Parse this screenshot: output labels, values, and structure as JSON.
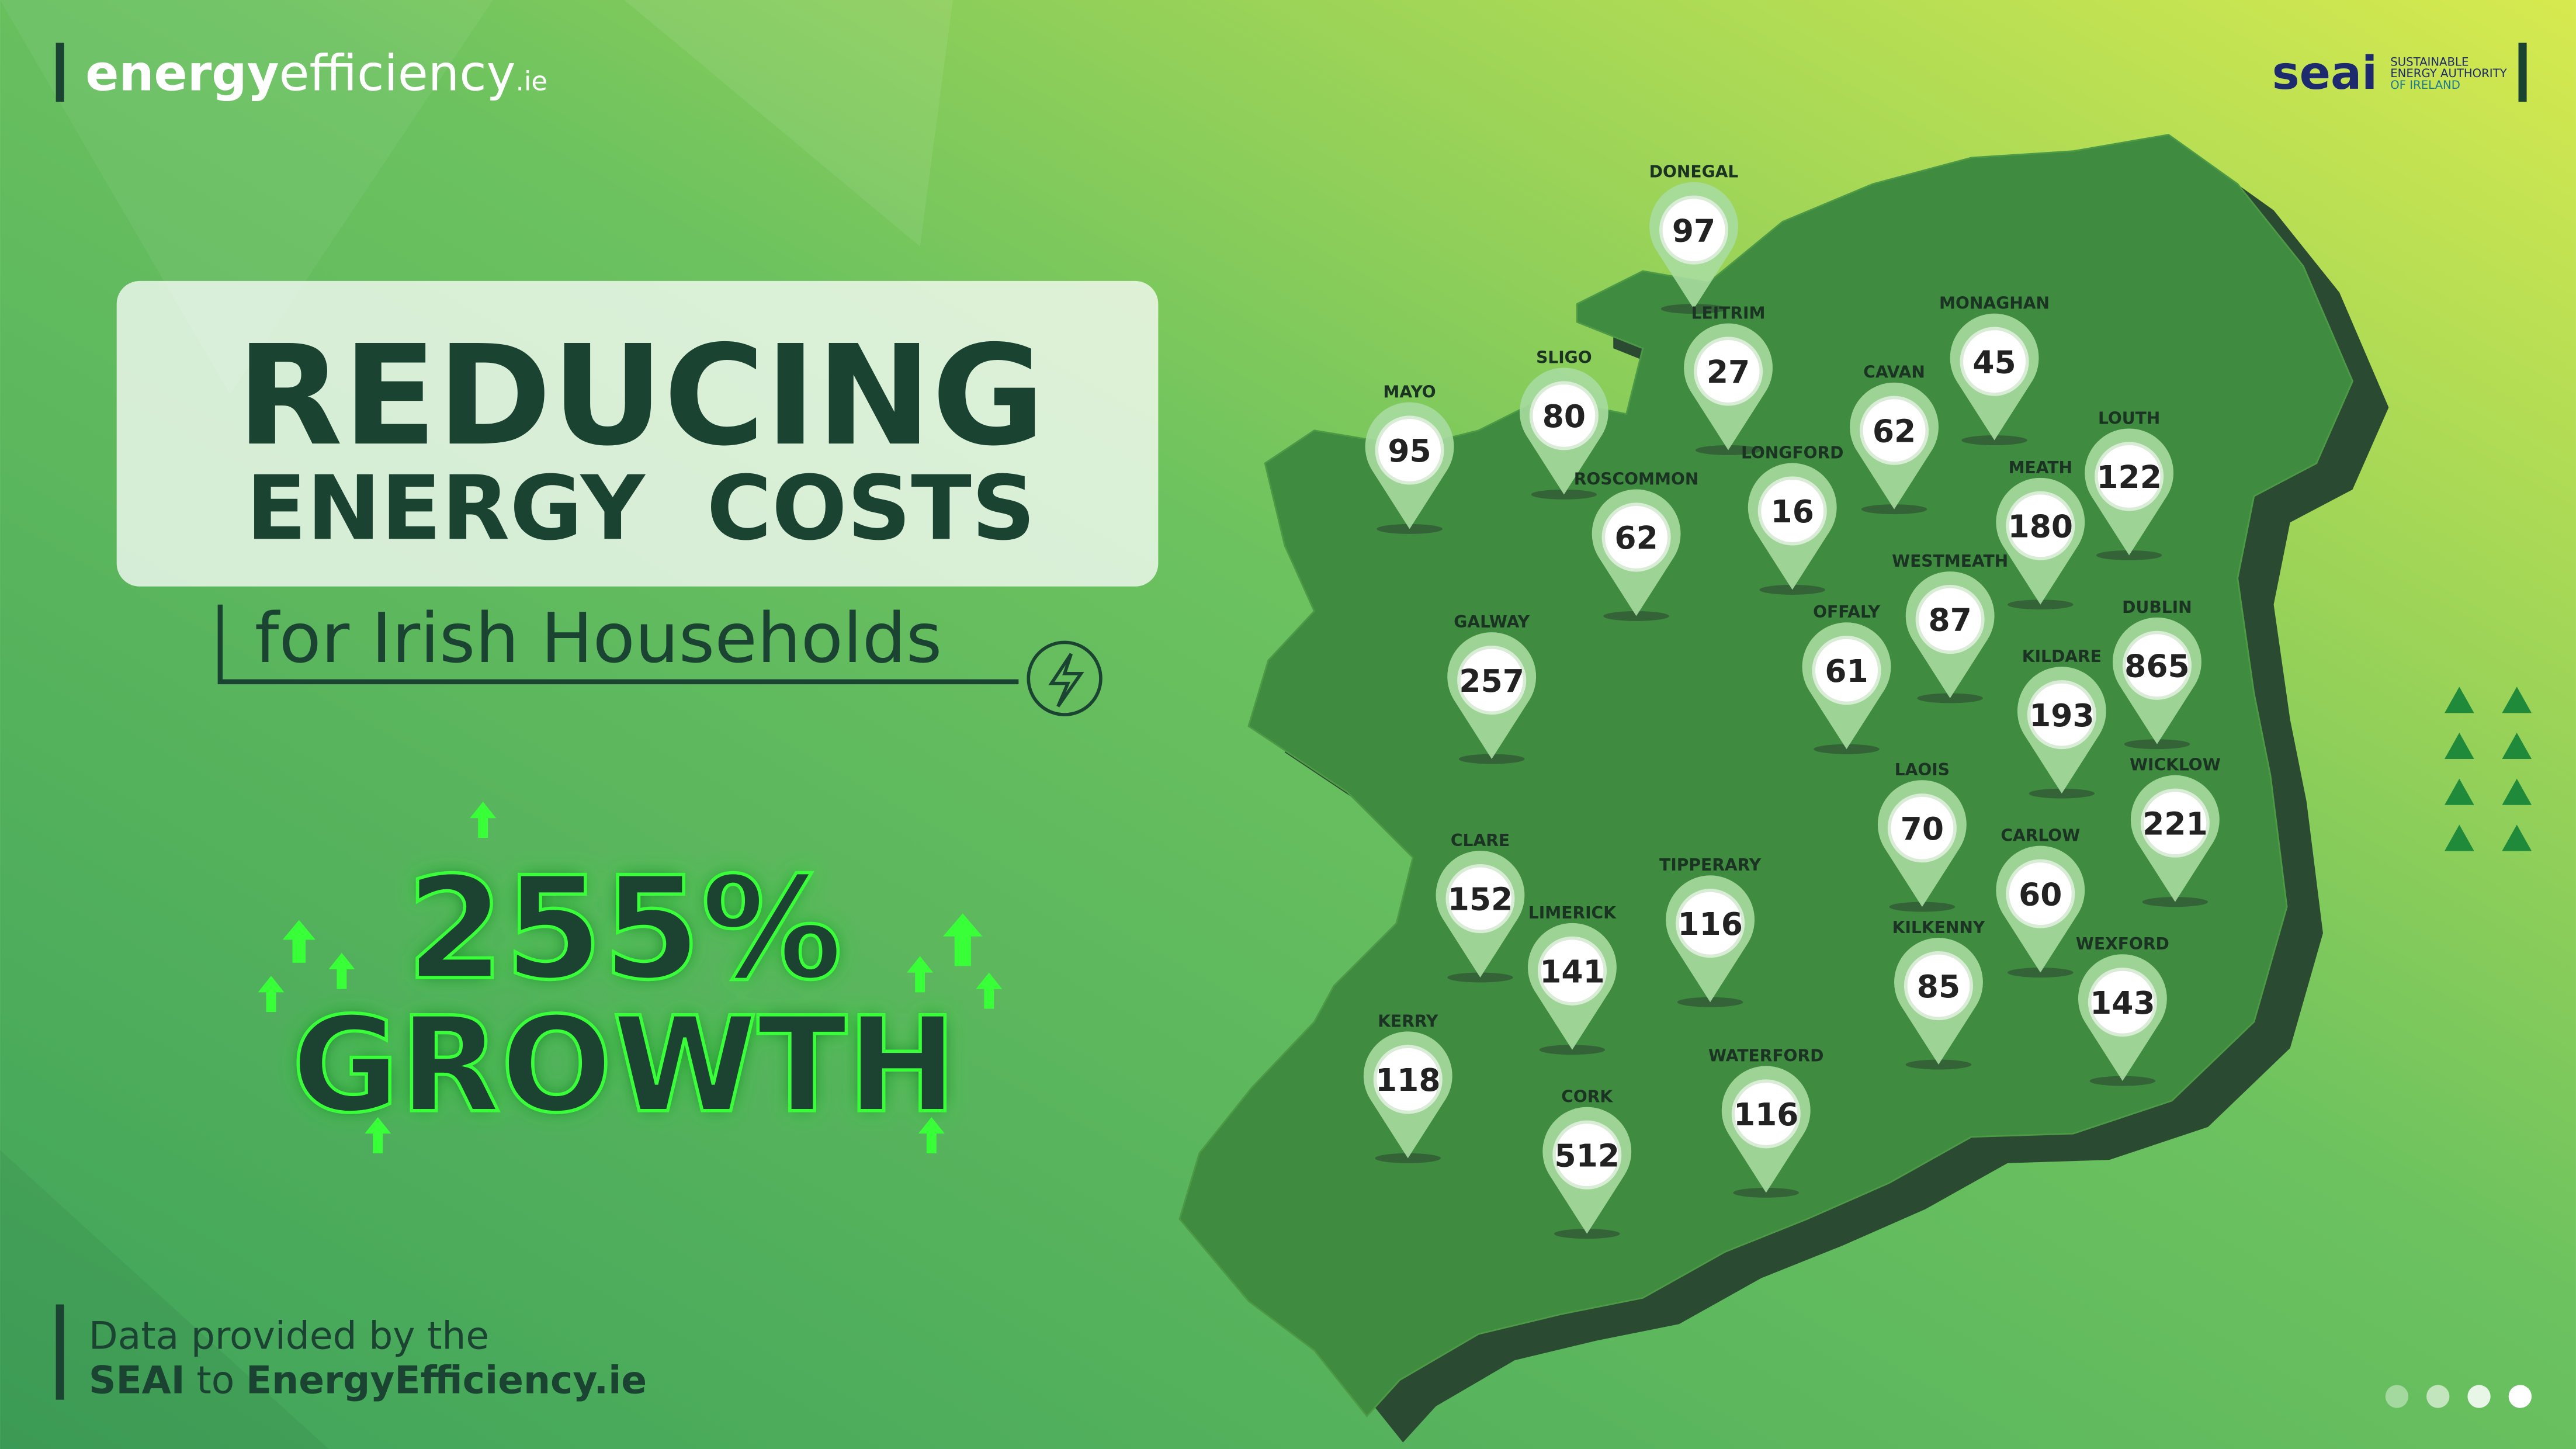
{
  "header": {
    "brand_bold": "energy",
    "brand_light": "efficiency",
    "brand_suffix": ".ie",
    "partner": "seai",
    "partner_line1": "SUSTAINABLE",
    "partner_line2": "ENERGY AUTHORITY",
    "partner_line3": "OF IRELAND"
  },
  "title": {
    "line1": "REDUCING",
    "line2": "ENERGY  COSTS",
    "subtitle": "for Irish Households"
  },
  "highlight": {
    "figure": "255%",
    "label": "GROWTH"
  },
  "footer": {
    "line1": "Data provided by the",
    "source": "SEAI",
    "connector": "to",
    "site": "EnergyEfficiency.ie"
  },
  "counties": [
    {
      "name": "DONEGAL",
      "value": "97"
    },
    {
      "name": "MAYO",
      "value": "95"
    },
    {
      "name": "SLIGO",
      "value": "80"
    },
    {
      "name": "LEITRIM",
      "value": "27"
    },
    {
      "name": "CAVAN",
      "value": "62"
    },
    {
      "name": "MONAGHAN",
      "value": "45"
    },
    {
      "name": "LOUTH",
      "value": "122"
    },
    {
      "name": "ROSCOMMON",
      "value": "62"
    },
    {
      "name": "LONGFORD",
      "value": "16"
    },
    {
      "name": "MEATH",
      "value": "180"
    },
    {
      "name": "WESTMEATH",
      "value": "87"
    },
    {
      "name": "OFFALY",
      "value": "61"
    },
    {
      "name": "GALWAY",
      "value": "257"
    },
    {
      "name": "DUBLIN",
      "value": "865"
    },
    {
      "name": "KILDARE",
      "value": "193"
    },
    {
      "name": "LAOIS",
      "value": "70"
    },
    {
      "name": "WICKLOW",
      "value": "221"
    },
    {
      "name": "CARLOW",
      "value": "60"
    },
    {
      "name": "CLARE",
      "value": "152"
    },
    {
      "name": "LIMERICK",
      "value": "141"
    },
    {
      "name": "TIPPERARY",
      "value": "116"
    },
    {
      "name": "KILKENNY",
      "value": "85"
    },
    {
      "name": "WEXFORD",
      "value": "143"
    },
    {
      "name": "KERRY",
      "value": "118"
    },
    {
      "name": "CORK",
      "value": "512"
    },
    {
      "name": "WATERFORD",
      "value": "116"
    }
  ]
}
